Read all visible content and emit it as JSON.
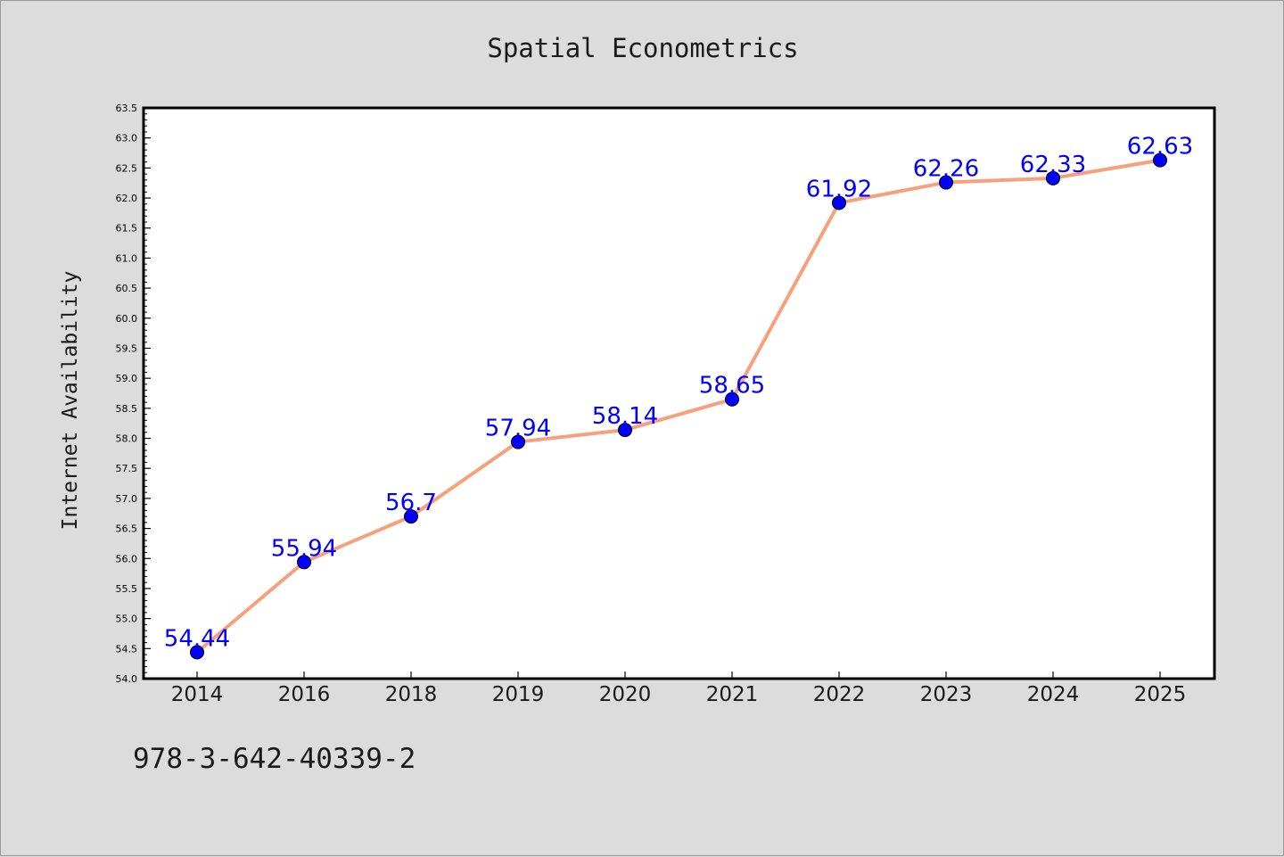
{
  "chart_data": {
    "type": "line",
    "title": "Spatial Econometrics",
    "xlabel": "",
    "ylabel": "Internet Availability",
    "categories": [
      "2014",
      "2016",
      "2018",
      "2019",
      "2020",
      "2021",
      "2022",
      "2023",
      "2024",
      "2025"
    ],
    "series": [
      {
        "values": [
          54.44,
          55.94,
          56.7,
          57.94,
          58.14,
          58.65,
          61.92,
          62.26,
          62.33,
          62.63
        ],
        "labels": [
          "54.44",
          "55.94",
          "56.7",
          "57.94",
          "58.14",
          "58.65",
          "61.92",
          "62.26",
          "62.33",
          "62.63"
        ],
        "line_color": "#f7a07c",
        "marker_color": "#0000ff"
      }
    ],
    "ylim": [
      54.0,
      63.5
    ],
    "ytick_labels": [
      "54.0",
      "54.5",
      "55.0",
      "55.5",
      "56.0",
      "56.5",
      "57.0",
      "57.5",
      "58.0",
      "58.5",
      "59.0",
      "59.5",
      "60.0",
      "60.5",
      "61.0",
      "61.5",
      "62.0",
      "62.5",
      "63.0",
      "63.5"
    ],
    "grid": false,
    "legend": "none"
  },
  "footer": {
    "text": "978-3-642-40339-2"
  },
  "colors": {
    "background": "#dcdcdc",
    "plot_background": "#ffffff",
    "line": "#f7a07c",
    "marker": "#0000ff",
    "data_label": "#0000ff"
  }
}
